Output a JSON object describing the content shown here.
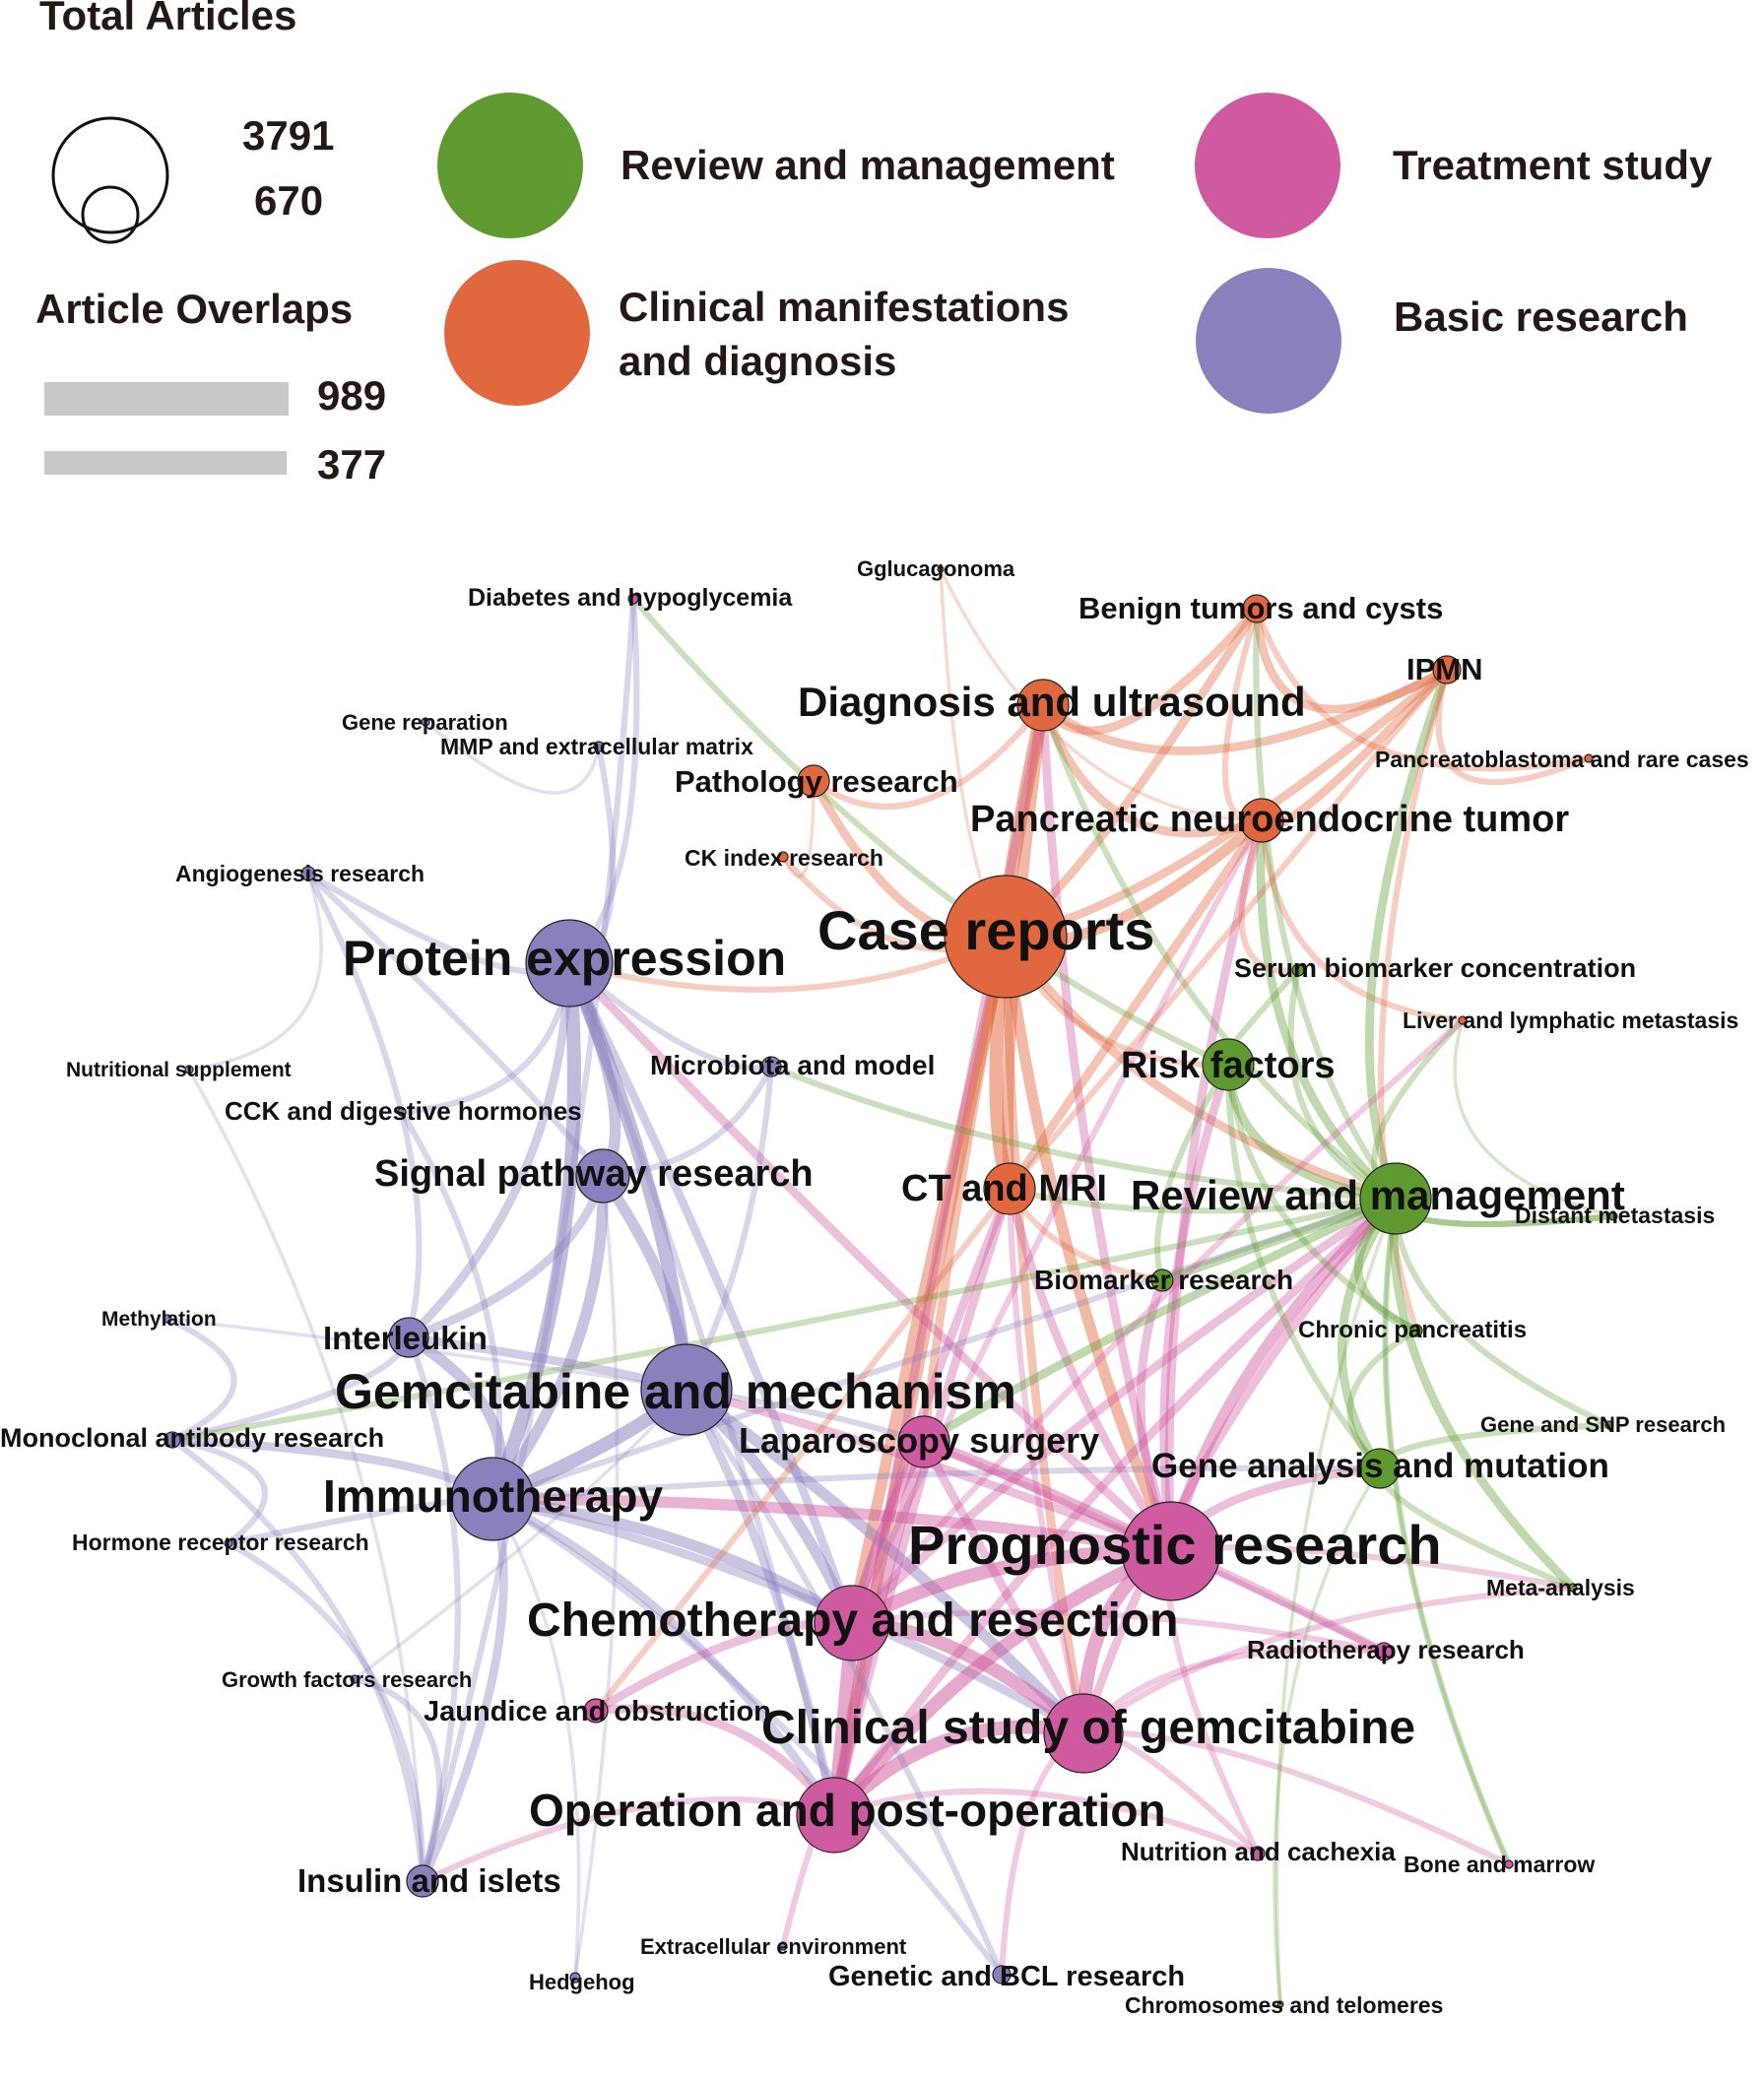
{
  "legend": {
    "size_title": "Total Articles",
    "size_max": "3791",
    "size_min": "670",
    "edge_title": "Article Overlaps",
    "edge_max": "989",
    "edge_min": "377",
    "edge_color": "#c8c8c8",
    "categories": [
      {
        "key": "review",
        "label_lines": [
          "Review and management"
        ],
        "color": "#5e9a2f"
      },
      {
        "key": "treatment",
        "label_lines": [
          "Treatment study"
        ],
        "color": "#cf5a9f"
      },
      {
        "key": "clinical",
        "label_lines": [
          "Clinical manifestations",
          "and diagnosis"
        ],
        "color": "#e0673e"
      },
      {
        "key": "basic",
        "label_lines": [
          "Basic research"
        ],
        "color": "#8b7fbd"
      }
    ]
  },
  "network": {
    "nodes": [
      {
        "id": "diabetes",
        "label": "Diabetes and hypoglycemia",
        "cat": "treatment"
      },
      {
        "id": "gglucagonoma",
        "label": "Gglucagonoma",
        "cat": "clinical"
      },
      {
        "id": "benign",
        "label": "Benign tumors and cysts",
        "cat": "clinical"
      },
      {
        "id": "ipmn",
        "label": "IPMN",
        "cat": "clinical"
      },
      {
        "id": "diagnosis",
        "label": "Diagnosis and ultrasound",
        "cat": "clinical"
      },
      {
        "id": "gene_rep",
        "label": "Gene reparation",
        "cat": "basic"
      },
      {
        "id": "mmp",
        "label": "MMP and extracellular matrix",
        "cat": "basic"
      },
      {
        "id": "pathology",
        "label": "Pathology research",
        "cat": "clinical"
      },
      {
        "id": "pancreatoblastoma",
        "label": "Pancreatoblastoma and rare cases",
        "cat": "clinical"
      },
      {
        "id": "pnet",
        "label": "Pancreatic neuroendocrine tumor",
        "cat": "clinical"
      },
      {
        "id": "angio",
        "label": "Angiogenesis research",
        "cat": "basic"
      },
      {
        "id": "ck",
        "label": "CK index research",
        "cat": "clinical"
      },
      {
        "id": "protein",
        "label": "Protein expression",
        "cat": "basic"
      },
      {
        "id": "case",
        "label": "Case reports",
        "cat": "clinical"
      },
      {
        "id": "serum",
        "label": "Serum biomarker concentration",
        "cat": "review"
      },
      {
        "id": "liver",
        "label": "Liver and lymphatic metastasis",
        "cat": "clinical"
      },
      {
        "id": "nutri_sup",
        "label": "Nutritional supplement",
        "cat": "basic"
      },
      {
        "id": "microbiota",
        "label": "Microbiota and model",
        "cat": "basic"
      },
      {
        "id": "risk",
        "label": "Risk factors",
        "cat": "review"
      },
      {
        "id": "cck",
        "label": "CCK and digestive hormones",
        "cat": "basic"
      },
      {
        "id": "signal",
        "label": "Signal pathway research",
        "cat": "basic"
      },
      {
        "id": "ctmri",
        "label": "CT and MRI",
        "cat": "clinical"
      },
      {
        "id": "review",
        "label": "Review and management",
        "cat": "review"
      },
      {
        "id": "distant",
        "label": "Distant metastasis",
        "cat": "review"
      },
      {
        "id": "biomarker",
        "label": "Biomarker research",
        "cat": "review"
      },
      {
        "id": "methylation",
        "label": "Methylation",
        "cat": "basic"
      },
      {
        "id": "interleukin",
        "label": "Interleukin",
        "cat": "basic"
      },
      {
        "id": "chronic",
        "label": "Chronic pancreatitis",
        "cat": "review"
      },
      {
        "id": "gemcitabine",
        "label": "Gemcitabine and mechanism",
        "cat": "basic"
      },
      {
        "id": "monoclonal",
        "label": "Monoclonal antibody research",
        "cat": "basic"
      },
      {
        "id": "laparoscopy",
        "label": "Laparoscopy surgery",
        "cat": "treatment"
      },
      {
        "id": "gene_snp",
        "label": "Gene and SNP research",
        "cat": "review"
      },
      {
        "id": "gene_mut",
        "label": "Gene analysis and mutation",
        "cat": "review"
      },
      {
        "id": "immuno",
        "label": "Immunotherapy",
        "cat": "basic"
      },
      {
        "id": "hormone",
        "label": "Hormone receptor research",
        "cat": "basic"
      },
      {
        "id": "prognostic",
        "label": "Prognostic research",
        "cat": "treatment"
      },
      {
        "id": "meta",
        "label": "Meta-analysis",
        "cat": "review"
      },
      {
        "id": "chemo",
        "label": "Chemotherapy and resection",
        "cat": "treatment"
      },
      {
        "id": "radio",
        "label": "Radiotherapy research",
        "cat": "treatment"
      },
      {
        "id": "growth",
        "label": "Growth factors research",
        "cat": "basic"
      },
      {
        "id": "jaundice",
        "label": "Jaundice and obstruction",
        "cat": "treatment"
      },
      {
        "id": "clinical_gem",
        "label": "Clinical study of gemcitabine",
        "cat": "treatment"
      },
      {
        "id": "operation",
        "label": "Operation and post-operation",
        "cat": "treatment"
      },
      {
        "id": "nutrition",
        "label": "Nutrition and cachexia",
        "cat": "treatment"
      },
      {
        "id": "bone",
        "label": "Bone and marrow",
        "cat": "treatment"
      },
      {
        "id": "insulin",
        "label": "Insulin and islets",
        "cat": "basic"
      },
      {
        "id": "extracell",
        "label": "Extracellular environment",
        "cat": "basic"
      },
      {
        "id": "genetic_bcl",
        "label": "Genetic and BCL research",
        "cat": "basic"
      },
      {
        "id": "hedgehog",
        "label": "Hedgehog",
        "cat": "basic"
      },
      {
        "id": "chromosomes",
        "label": "Chromosomes and telomeres",
        "cat": "review"
      }
    ],
    "edges": [
      [
        "case",
        "diagnosis",
        5
      ],
      [
        "case",
        "pnet",
        4
      ],
      [
        "case",
        "benign",
        3
      ],
      [
        "case",
        "ipmn",
        3
      ],
      [
        "case",
        "ctmri",
        5
      ],
      [
        "case",
        "pathology",
        3
      ],
      [
        "case",
        "risk",
        2
      ],
      [
        "case",
        "review",
        3
      ],
      [
        "case",
        "prognostic",
        4
      ],
      [
        "case",
        "chemo",
        4
      ],
      [
        "case",
        "operation",
        4
      ],
      [
        "case",
        "laparoscopy",
        3
      ],
      [
        "case",
        "clinical_gem",
        3
      ],
      [
        "case",
        "protein",
        2
      ],
      [
        "diagnosis",
        "benign",
        3
      ],
      [
        "diagnosis",
        "ipmn",
        3
      ],
      [
        "diagnosis",
        "pnet",
        3
      ],
      [
        "diagnosis",
        "ctmri",
        4
      ],
      [
        "diagnosis",
        "pathology",
        2
      ],
      [
        "diagnosis",
        "review",
        2
      ],
      [
        "diagnosis",
        "prognostic",
        3
      ],
      [
        "diagnosis",
        "operation",
        3
      ],
      [
        "pnet",
        "ipmn",
        3
      ],
      [
        "pnet",
        "benign",
        2
      ],
      [
        "pnet",
        "ctmri",
        3
      ],
      [
        "pnet",
        "review",
        3
      ],
      [
        "pnet",
        "prognostic",
        3
      ],
      [
        "pnet",
        "chemo",
        2
      ],
      [
        "pnet",
        "serum",
        2
      ],
      [
        "pnet",
        "liver",
        2
      ],
      [
        "benign",
        "ipmn",
        3
      ],
      [
        "benign",
        "pancreatoblastoma",
        2
      ],
      [
        "benign",
        "review",
        2
      ],
      [
        "ipmn",
        "pancreatoblastoma",
        2
      ],
      [
        "ipmn",
        "review",
        3
      ],
      [
        "ipmn",
        "ctmri",
        2
      ],
      [
        "ipmn",
        "chronic",
        2
      ],
      [
        "ctmri",
        "prognostic",
        3
      ],
      [
        "ctmri",
        "chemo",
        3
      ],
      [
        "ctmri",
        "review",
        2
      ],
      [
        "ctmri",
        "operation",
        3
      ],
      [
        "ctmri",
        "clinical_gem",
        2
      ],
      [
        "protein",
        "signal",
        4
      ],
      [
        "protein",
        "gemcitabine",
        5
      ],
      [
        "protein",
        "immuno",
        5
      ],
      [
        "protein",
        "interleukin",
        3
      ],
      [
        "protein",
        "microbiota",
        2
      ],
      [
        "protein",
        "prognostic",
        3
      ],
      [
        "protein",
        "angio",
        2
      ],
      [
        "protein",
        "chemo",
        3
      ],
      [
        "protein",
        "cck",
        2
      ],
      [
        "protein",
        "operation",
        2
      ],
      [
        "signal",
        "gemcitabine",
        4
      ],
      [
        "signal",
        "immuno",
        4
      ],
      [
        "signal",
        "interleukin",
        3
      ],
      [
        "signal",
        "microbiota",
        2
      ],
      [
        "gemcitabine",
        "immuno",
        5
      ],
      [
        "gemcitabine",
        "interleukin",
        3
      ],
      [
        "gemcitabine",
        "chemo",
        4
      ],
      [
        "gemcitabine",
        "clinical_gem",
        4
      ],
      [
        "gemcitabine",
        "prognostic",
        3
      ],
      [
        "gemcitabine",
        "operation",
        3
      ],
      [
        "gemcitabine",
        "laparoscopy",
        2
      ],
      [
        "immuno",
        "interleukin",
        4
      ],
      [
        "immuno",
        "insulin",
        3
      ],
      [
        "immuno",
        "monoclonal",
        3
      ],
      [
        "immuno",
        "chemo",
        4
      ],
      [
        "immuno",
        "prognostic",
        4
      ],
      [
        "immuno",
        "operation",
        3
      ],
      [
        "immuno",
        "clinical_gem",
        3
      ],
      [
        "immuno",
        "genetic_bcl",
        2
      ],
      [
        "immuno",
        "gene_mut",
        2
      ],
      [
        "immuno",
        "review",
        2
      ],
      [
        "prognostic",
        "chemo",
        5
      ],
      [
        "prognostic",
        "clinical_gem",
        5
      ],
      [
        "prognostic",
        "operation",
        5
      ],
      [
        "prognostic",
        "laparoscopy",
        4
      ],
      [
        "prognostic",
        "review",
        4
      ],
      [
        "prognostic",
        "risk",
        3
      ],
      [
        "prognostic",
        "gene_mut",
        3
      ],
      [
        "prognostic",
        "radio",
        3
      ],
      [
        "prognostic",
        "meta",
        2
      ],
      [
        "prognostic",
        "biomarker",
        3
      ],
      [
        "prognostic",
        "nutrition",
        2
      ],
      [
        "chemo",
        "clinical_gem",
        5
      ],
      [
        "chemo",
        "operation",
        5
      ],
      [
        "chemo",
        "laparoscopy",
        4
      ],
      [
        "chemo",
        "jaundice",
        3
      ],
      [
        "chemo",
        "review",
        3
      ],
      [
        "chemo",
        "radio",
        2
      ],
      [
        "clinical_gem",
        "operation",
        5
      ],
      [
        "clinical_gem",
        "laparoscopy",
        3
      ],
      [
        "clinical_gem",
        "review",
        3
      ],
      [
        "clinical_gem",
        "radio",
        2
      ],
      [
        "clinical_gem",
        "nutrition",
        2
      ],
      [
        "clinical_gem",
        "bone",
        2
      ],
      [
        "clinical_gem",
        "meta",
        2
      ],
      [
        "operation",
        "laparoscopy",
        4
      ],
      [
        "operation",
        "jaundice",
        3
      ],
      [
        "operation",
        "review",
        3
      ],
      [
        "operation",
        "nutrition",
        2
      ],
      [
        "operation",
        "insulin",
        2
      ],
      [
        "operation",
        "extracell",
        2
      ],
      [
        "review",
        "risk",
        3
      ],
      [
        "review",
        "gene_mut",
        3
      ],
      [
        "review",
        "biomarker",
        3
      ],
      [
        "review",
        "chronic",
        3
      ],
      [
        "review",
        "meta",
        3
      ],
      [
        "review",
        "serum",
        2
      ],
      [
        "review",
        "distant",
        2
      ],
      [
        "review",
        "liver",
        2
      ],
      [
        "review",
        "gene_snp",
        2
      ],
      [
        "review",
        "bone",
        2
      ],
      [
        "risk",
        "diabetes",
        2
      ],
      [
        "risk",
        "chronic",
        2
      ],
      [
        "risk",
        "gene_mut",
        2
      ],
      [
        "risk",
        "biomarker",
        2
      ],
      [
        "gene_mut",
        "gene_snp",
        2
      ],
      [
        "gene_mut",
        "meta",
        2
      ],
      [
        "gene_mut",
        "chronic",
        2
      ],
      [
        "laparoscopy",
        "review",
        3
      ],
      [
        "laparoscopy",
        "radio",
        2
      ],
      [
        "insulin",
        "interleukin",
        2
      ],
      [
        "insulin",
        "monoclonal",
        2
      ],
      [
        "insulin",
        "hormone",
        2
      ],
      [
        "insulin",
        "growth",
        2
      ],
      [
        "monoclonal",
        "methylation",
        2
      ],
      [
        "monoclonal",
        "hormone",
        2
      ],
      [
        "monoclonal",
        "interleukin",
        2
      ],
      [
        "monoclonal",
        "review",
        2
      ],
      [
        "angio",
        "interleukin",
        2
      ],
      [
        "angio",
        "nutri_sup",
        1
      ],
      [
        "angio",
        "signal",
        2
      ],
      [
        "gene_rep",
        "mmp",
        1
      ],
      [
        "mmp",
        "protein",
        2
      ],
      [
        "diabetes",
        "insulin",
        2
      ],
      [
        "diabetes",
        "protein",
        2
      ],
      [
        "gglucagonoma",
        "pnet",
        1
      ],
      [
        "gglucagonoma",
        "case",
        1
      ],
      [
        "ck",
        "case",
        2
      ],
      [
        "ck",
        "pathology",
        1
      ],
      [
        "hedgehog",
        "signal",
        1
      ],
      [
        "hedgehog",
        "immuno",
        1
      ],
      [
        "genetic_bcl",
        "gemcitabine",
        2
      ],
      [
        "genetic_bcl",
        "clinical_gem",
        2
      ],
      [
        "chromosomes",
        "gene_mut",
        1
      ],
      [
        "chromosomes",
        "review",
        1
      ],
      [
        "distant",
        "liver",
        1
      ],
      [
        "distant",
        "review",
        2
      ],
      [
        "microbiota",
        "gemcitabine",
        2
      ],
      [
        "microbiota",
        "review",
        2
      ],
      [
        "cck",
        "immuno",
        2
      ],
      [
        "nutri_sup",
        "insulin",
        1
      ],
      [
        "methylation",
        "gemcitabine",
        1
      ],
      [
        "jaundice",
        "ctmri",
        2
      ],
      [
        "growth",
        "gemcitabine",
        1
      ],
      [
        "hormone",
        "immuno",
        2
      ],
      [
        "serum",
        "risk",
        2
      ],
      [
        "biomarker",
        "ctmri",
        2
      ],
      [
        "liver",
        "chemo",
        2
      ],
      [
        "bone",
        "review",
        1
      ]
    ]
  }
}
